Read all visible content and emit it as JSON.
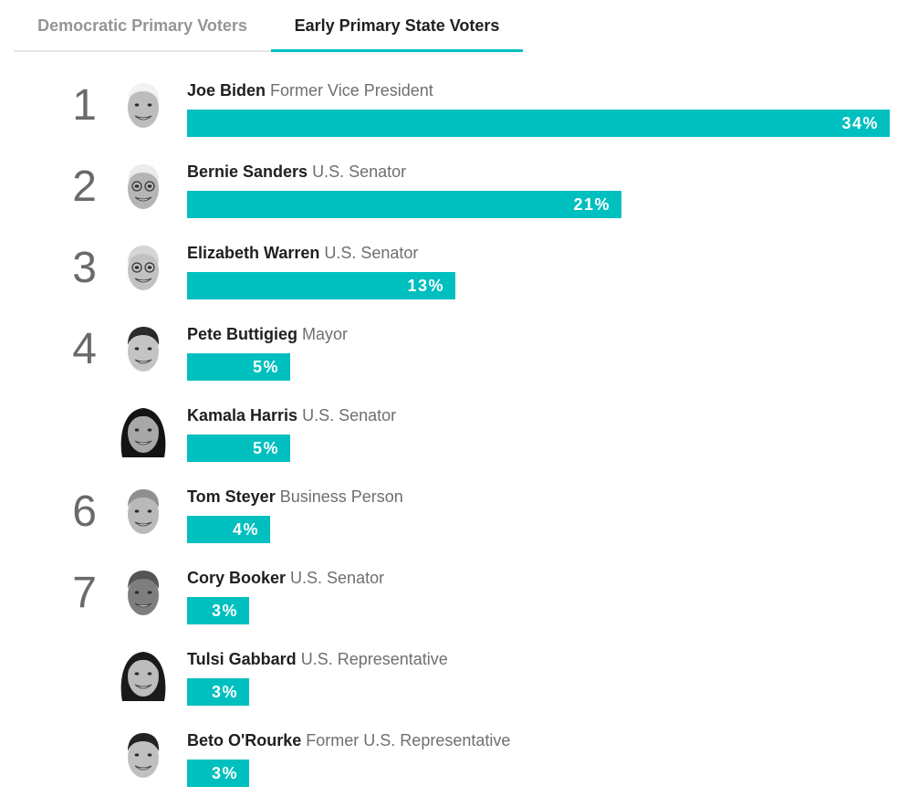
{
  "tabs": [
    {
      "label": "Democratic Primary Voters",
      "active": false
    },
    {
      "label": "Early Primary State Voters",
      "active": true
    }
  ],
  "colors": {
    "accent": "#00bfbf",
    "rank_text": "#6a6a6a",
    "name_text": "#1f1f1f",
    "title_text": "#6f6f6f",
    "inactive_tab": "#959595"
  },
  "chart_data": {
    "type": "bar",
    "orientation": "horizontal",
    "xlim": [
      0,
      34
    ],
    "categories": [
      "Joe Biden",
      "Bernie Sanders",
      "Elizabeth Warren",
      "Pete Buttigieg",
      "Kamala Harris",
      "Tom Steyer",
      "Cory Booker",
      "Tulsi Gabbard",
      "Beto O'Rourke"
    ],
    "values": [
      34,
      21,
      13,
      5,
      5,
      4,
      3,
      3,
      3
    ],
    "candidates": [
      {
        "rank": "1",
        "name": "Joe Biden",
        "title": "Former Vice President",
        "value": 34,
        "label": "34%",
        "avatar_icon": "joe-biden-portrait"
      },
      {
        "rank": "2",
        "name": "Bernie Sanders",
        "title": "U.S. Senator",
        "value": 21,
        "label": "21%",
        "avatar_icon": "bernie-sanders-portrait"
      },
      {
        "rank": "3",
        "name": "Elizabeth Warren",
        "title": "U.S. Senator",
        "value": 13,
        "label": "13%",
        "avatar_icon": "elizabeth-warren-portrait"
      },
      {
        "rank": "4",
        "name": "Pete Buttigieg",
        "title": "Mayor",
        "value": 5,
        "label": "5%",
        "avatar_icon": "pete-buttigieg-portrait"
      },
      {
        "rank": "",
        "name": "Kamala Harris",
        "title": "U.S. Senator",
        "value": 5,
        "label": "5%",
        "avatar_icon": "kamala-harris-portrait"
      },
      {
        "rank": "6",
        "name": "Tom Steyer",
        "title": "Business Person",
        "value": 4,
        "label": "4%",
        "avatar_icon": "tom-steyer-portrait"
      },
      {
        "rank": "7",
        "name": "Cory Booker",
        "title": "U.S. Senator",
        "value": 3,
        "label": "3%",
        "avatar_icon": "cory-booker-portrait"
      },
      {
        "rank": "",
        "name": "Tulsi Gabbard",
        "title": "U.S. Representative",
        "value": 3,
        "label": "3%",
        "avatar_icon": "tulsi-gabbard-portrait"
      },
      {
        "rank": "",
        "name": "Beto O'Rourke",
        "title": "Former U.S. Representative",
        "value": 3,
        "label": "3%",
        "avatar_icon": "beto-orourke-portrait"
      }
    ]
  }
}
